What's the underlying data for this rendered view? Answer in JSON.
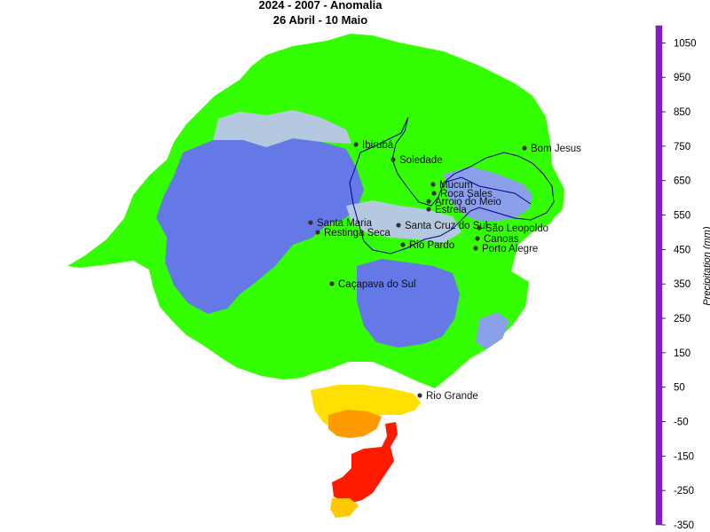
{
  "map": {
    "title": "2024 - 2007 - Anomalia",
    "subtitle": "26 Abril - 10 Maio",
    "colorbar": {
      "unit_label": "Precipitation (mm)",
      "ticks": [
        1050,
        950,
        850,
        750,
        650,
        550,
        450,
        350,
        250,
        150,
        50,
        -50,
        -150,
        -250,
        -350
      ],
      "stops": [
        {
          "value": 1100,
          "color": "#8c14d2"
        },
        {
          "value": 900,
          "color": "#4d0000"
        },
        {
          "value": 750,
          "color": "#cc0000"
        },
        {
          "value": 650,
          "color": "#ff1a00"
        },
        {
          "value": 500,
          "color": "#ff8800"
        },
        {
          "value": 300,
          "color": "#ffff00"
        },
        {
          "value": 150,
          "color": "#aaff00"
        },
        {
          "value": 30,
          "color": "#33ff00"
        },
        {
          "value": 5,
          "color": "#b4c8e0"
        },
        {
          "value": -60,
          "color": "#6478e6"
        },
        {
          "value": -150,
          "color": "#0000ff"
        },
        {
          "value": -350,
          "color": "#000080"
        }
      ]
    },
    "cities": [
      {
        "name": "Ibirubá"
      },
      {
        "name": "Soledade"
      },
      {
        "name": "Bom Jesus"
      },
      {
        "name": "Mucum"
      },
      {
        "name": "Roca Sales"
      },
      {
        "name": "Arroio do Meio"
      },
      {
        "name": "Estrela"
      },
      {
        "name": "Santa Maria"
      },
      {
        "name": "Restinga Seca"
      },
      {
        "name": "Santa Cruz do Sul"
      },
      {
        "name": "São Leopoldo"
      },
      {
        "name": "Canoas"
      },
      {
        "name": "Rio Pardo"
      },
      {
        "name": "Porto Alegre"
      },
      {
        "name": "Caçapava do Sul"
      },
      {
        "name": "Rio Grande"
      }
    ]
  }
}
